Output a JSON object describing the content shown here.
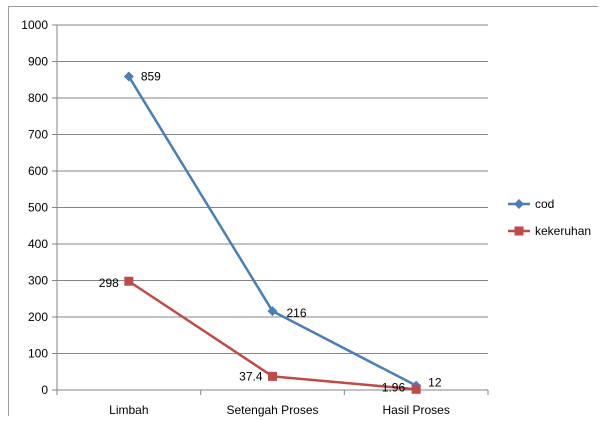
{
  "chart_data": {
    "type": "line",
    "title": "",
    "xlabel": "",
    "ylabel": "",
    "categories": [
      "Limbah",
      "Setengah Proses",
      "Hasil Proses"
    ],
    "ylim": [
      0,
      1000
    ],
    "yticks": [
      0,
      100,
      200,
      300,
      400,
      500,
      600,
      700,
      800,
      900,
      1000
    ],
    "yticks_labels": [
      "0",
      "100",
      "200",
      "300",
      "400",
      "500",
      "600",
      "700",
      "800",
      "900",
      "1000"
    ],
    "grid": true,
    "legend_position": "right",
    "series": [
      {
        "name": "cod",
        "values": [
          859,
          216,
          12
        ],
        "labels": [
          "859",
          "216",
          "12"
        ],
        "color": "#4a7ebb",
        "marker": "diamond"
      },
      {
        "name": "kekeruhan",
        "values": [
          298,
          37.4,
          1.96
        ],
        "labels": [
          "298",
          "37.4",
          "1.96"
        ],
        "color": "#be4b48",
        "marker": "square"
      }
    ]
  }
}
